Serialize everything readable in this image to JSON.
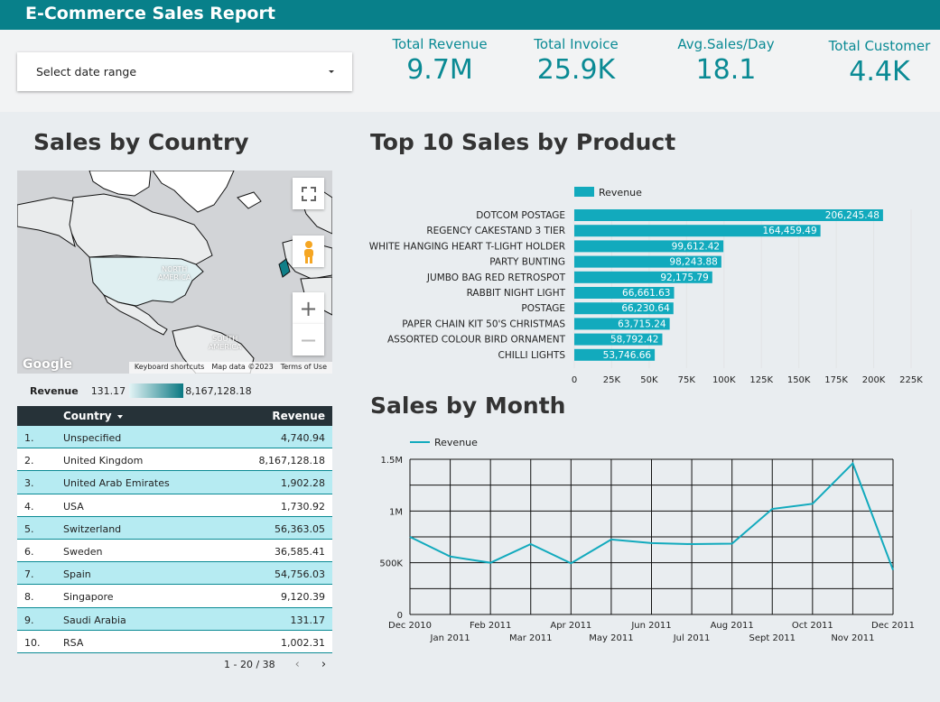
{
  "header": {
    "title": "E-Commerce Sales Report"
  },
  "date_filter": {
    "label": "Select date range"
  },
  "kpis": [
    {
      "label": "Total Revenue",
      "value": "9.7M"
    },
    {
      "label": "Total Invoice",
      "value": "25.9K"
    },
    {
      "label": "Avg.Sales/Day",
      "value": "18.1"
    },
    {
      "label": "Total Customer",
      "value": "4.4K"
    }
  ],
  "sales_by_country": {
    "title": "Sales by Country",
    "map": {
      "labels": {
        "north_america": "NORTH\nAMERICA",
        "south_america": "SOUTH\nAMERICA"
      },
      "attribution": [
        "Keyboard shortcuts",
        "Map data ©2023",
        "Terms of Use"
      ],
      "logo": "Google"
    },
    "legend": {
      "label": "Revenue",
      "min": "131.17",
      "max": "8,167,128.18"
    },
    "table": {
      "headers": {
        "country": "Country",
        "revenue": "Revenue"
      },
      "rows": [
        {
          "num": "1.",
          "country": "Unspecified",
          "revenue": "4,740.94"
        },
        {
          "num": "2.",
          "country": "United Kingdom",
          "revenue": "8,167,128.18"
        },
        {
          "num": "3.",
          "country": "United Arab Emirates",
          "revenue": "1,902.28"
        },
        {
          "num": "4.",
          "country": "USA",
          "revenue": "1,730.92"
        },
        {
          "num": "5.",
          "country": "Switzerland",
          "revenue": "56,363.05"
        },
        {
          "num": "6.",
          "country": "Sweden",
          "revenue": "36,585.41"
        },
        {
          "num": "7.",
          "country": "Spain",
          "revenue": "54,756.03"
        },
        {
          "num": "8.",
          "country": "Singapore",
          "revenue": "9,120.39"
        },
        {
          "num": "9.",
          "country": "Saudi Arabia",
          "revenue": "131.17"
        },
        {
          "num": "10.",
          "country": "RSA",
          "revenue": "1,002.31"
        }
      ],
      "pagination": "1 - 20 / 38"
    }
  },
  "top_products": {
    "title": "Top 10 Sales by Product"
  },
  "sales_by_month": {
    "title": "Sales by Month"
  },
  "colors": {
    "accent": "#08808a",
    "bar": "#12aabd",
    "row_highlight": "#b6ebf2"
  },
  "chart_data": [
    {
      "type": "bar",
      "orientation": "horizontal",
      "title": "Top 10 Sales by Product",
      "legend": "top-left",
      "series": [
        {
          "name": "Revenue"
        }
      ],
      "categories": [
        "DOTCOM POSTAGE",
        "REGENCY CAKESTAND 3 TIER",
        "WHITE HANGING HEART T-LIGHT HOLDER",
        "PARTY BUNTING",
        "JUMBO BAG RED RETROSPOT",
        "RABBIT NIGHT LIGHT",
        "POSTAGE",
        "PAPER CHAIN KIT 50'S CHRISTMAS",
        "ASSORTED COLOUR BIRD ORNAMENT",
        "CHILLI LIGHTS"
      ],
      "values": [
        206245.48,
        164459.49,
        99612.42,
        98243.88,
        92175.79,
        66661.63,
        66230.64,
        63715.24,
        58792.42,
        53746.66
      ],
      "value_labels": [
        "206,245.48",
        "164,459.49",
        "99,612.42",
        "98,243.88",
        "92,175.79",
        "66,661.63",
        "66,230.64",
        "63,715.24",
        "58,792.42",
        "53,746.66"
      ],
      "xlim": [
        0,
        225000
      ],
      "xticks": [
        "0",
        "25K",
        "50K",
        "75K",
        "100K",
        "125K",
        "150K",
        "175K",
        "200K",
        "225K"
      ],
      "grid": true
    },
    {
      "type": "line",
      "title": "Sales by Month",
      "legend": "top-left",
      "x": [
        "Dec 2010",
        "Jan 2011",
        "Feb 2011",
        "Mar 2011",
        "Apr 2011",
        "May 2011",
        "Jun 2011",
        "Jul 2011",
        "Aug 2011",
        "Sept 2011",
        "Oct 2011",
        "Nov 2011",
        "Dec 2011"
      ],
      "series": [
        {
          "name": "Revenue",
          "values": [
            750000,
            560000,
            500000,
            680000,
            495000,
            725000,
            690000,
            680000,
            685000,
            1020000,
            1070000,
            1460000,
            430000
          ]
        }
      ],
      "ylim": [
        0,
        1500000
      ],
      "yticks": [
        "0",
        "500K",
        "1M",
        "1.5M"
      ],
      "grid": true
    }
  ]
}
